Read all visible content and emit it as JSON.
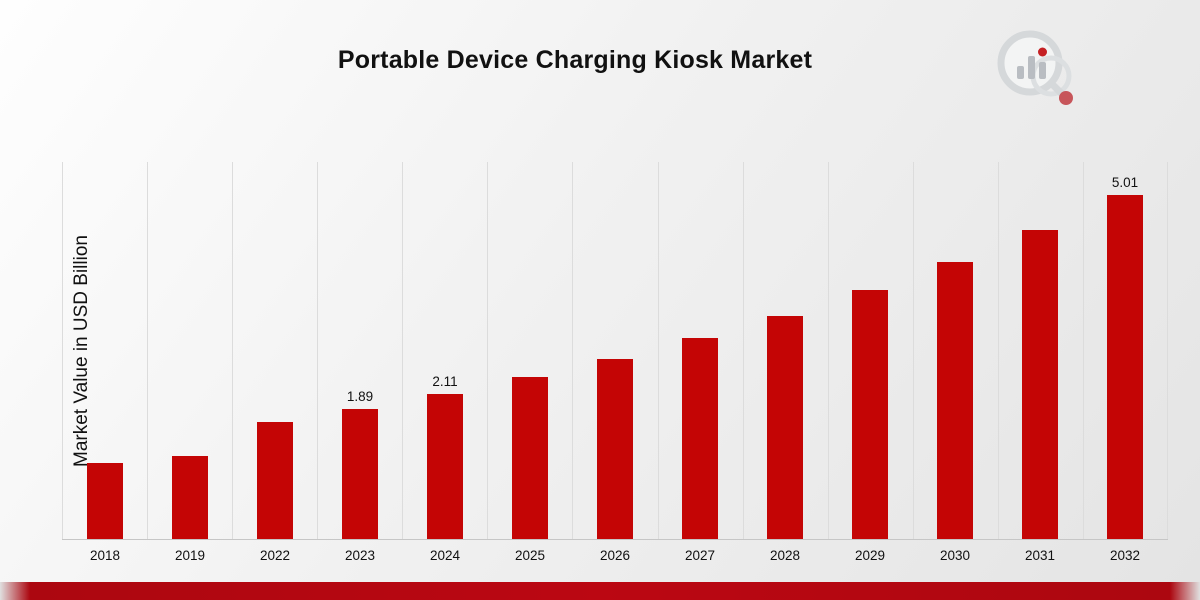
{
  "header": {
    "title": "Portable Device Charging Kiosk Market"
  },
  "chart_data": {
    "type": "bar",
    "title": "Portable Device Charging Kiosk Market",
    "xlabel": "",
    "ylabel": "Market Value in USD Billion",
    "categories": [
      "2018",
      "2019",
      "2022",
      "2023",
      "2024",
      "2025",
      "2026",
      "2027",
      "2028",
      "2029",
      "2030",
      "2031",
      "2032"
    ],
    "values": [
      1.1,
      1.21,
      1.7,
      1.89,
      2.11,
      2.35,
      2.62,
      2.92,
      3.25,
      3.62,
      4.03,
      4.49,
      5.01
    ],
    "data_labels": [
      "",
      "",
      "",
      "1.89",
      "2.11",
      "",
      "",
      "",
      "",
      "",
      "",
      "",
      "5.01"
    ],
    "ylim": [
      0,
      5.5
    ],
    "bar_color": "#c40505",
    "grid": "vertical",
    "legend": "none"
  },
  "footer": {
    "band_color": "#bb0712"
  }
}
